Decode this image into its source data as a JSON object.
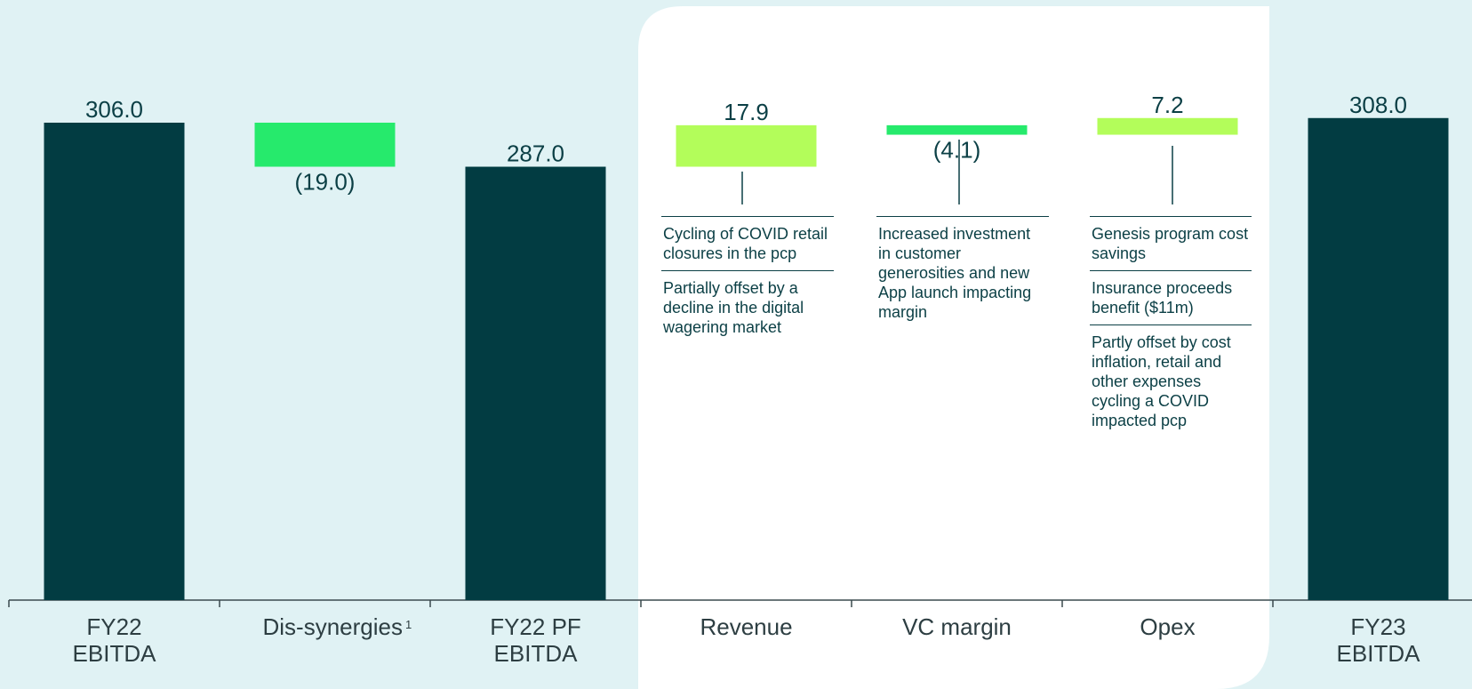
{
  "chart_data": {
    "type": "waterfall",
    "categories": [
      "FY22 EBITDA",
      "Dis-synergies",
      "FY22 PF EBITDA",
      "Revenue",
      "VC margin",
      "Opex",
      "FY23 EBITDA"
    ],
    "category_notes": [
      null,
      "1",
      null,
      null,
      null,
      null,
      null
    ],
    "values": [
      306.0,
      -19.0,
      287.0,
      17.9,
      -4.1,
      7.2,
      308.0
    ],
    "value_labels": [
      "306.0",
      "(19.0)",
      "287.0",
      "17.9",
      "(4.1)",
      "7.2",
      "308.0"
    ],
    "colors": [
      "#023c42",
      "#26ea6c",
      "#023c42",
      "#b3fd5a",
      "#26ea6c",
      "#b3fd5a",
      "#023c42"
    ],
    "ylim": [
      100,
      320
    ]
  },
  "annotations": [
    [
      "Cycling of COVID retail closures in the pcp",
      "Partially offset by a decline in the digital wagering market"
    ],
    [
      "Increased investment in customer generosities and new App launch impacting margin"
    ],
    [
      "Genesis program cost savings",
      "Insurance proceeds benefit ($11m)",
      "Partly offset by cost inflation, retail and other expenses cycling a COVID impacted pcp"
    ]
  ]
}
